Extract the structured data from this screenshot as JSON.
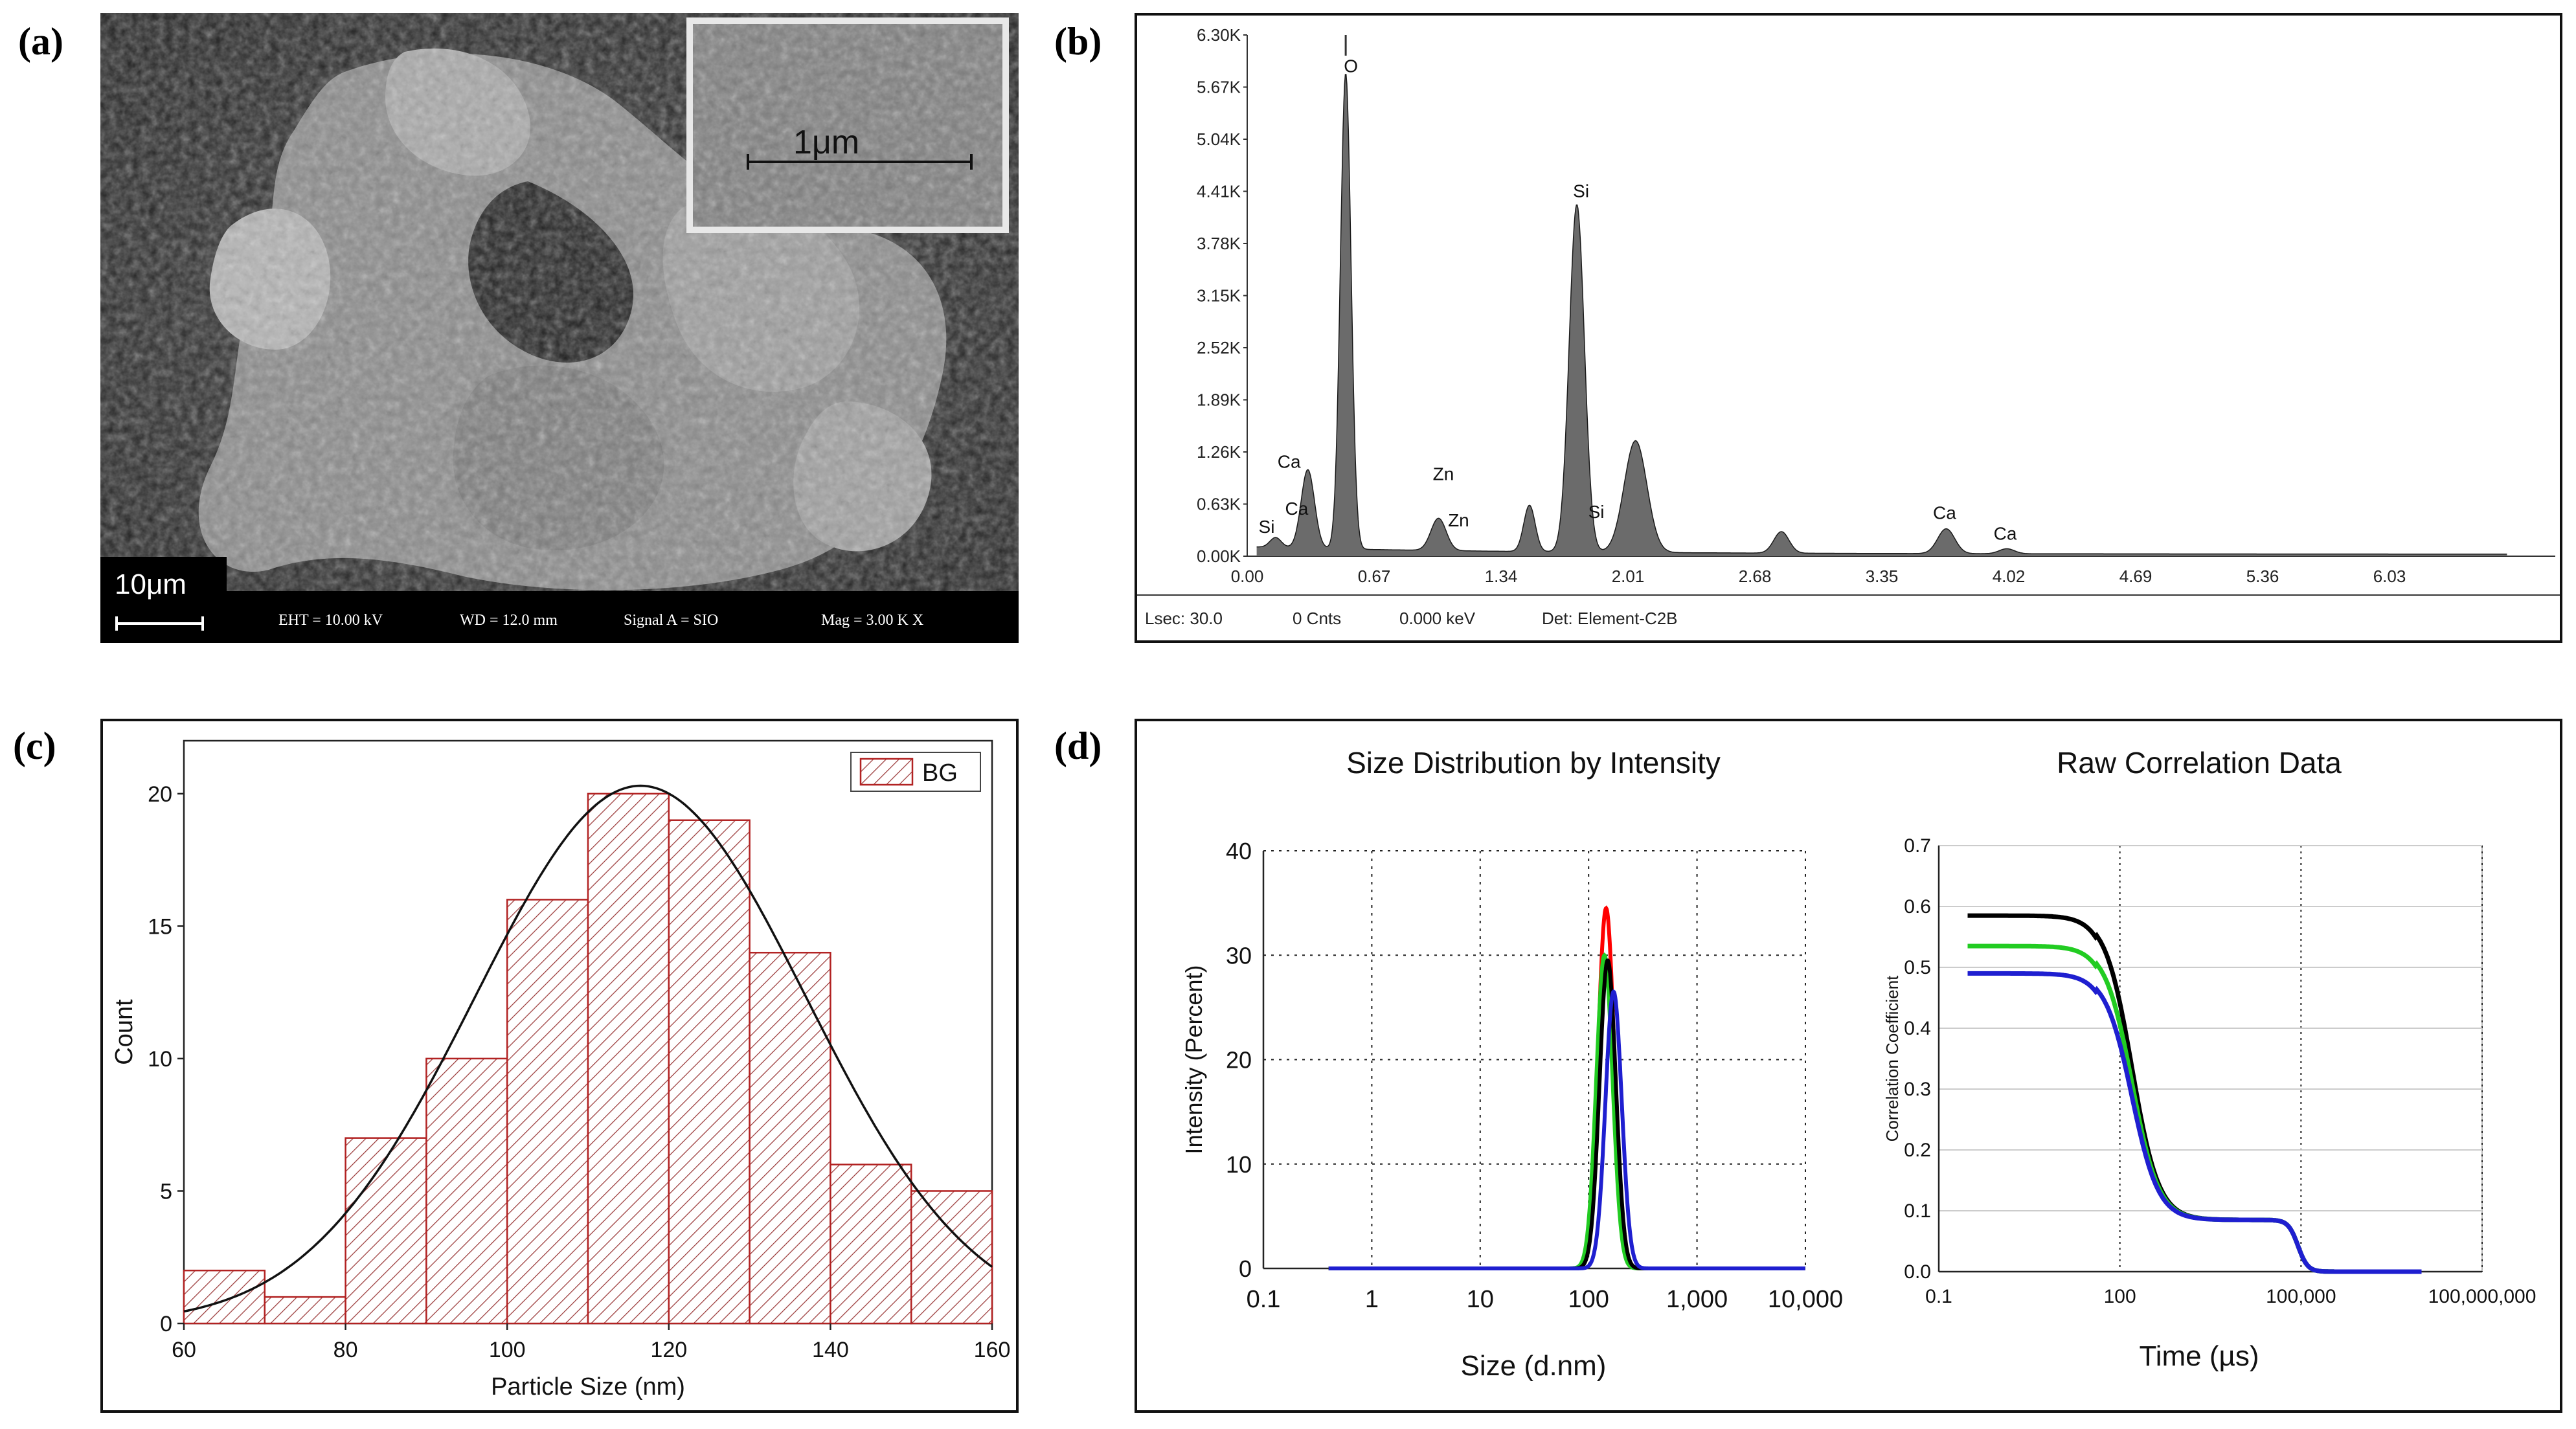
{
  "panel_labels": {
    "a": "(a)",
    "b": "(b)",
    "c": "(c)",
    "d": "(d)"
  },
  "sem": {
    "inset_scale": "1μm",
    "main_scale": "10μm",
    "info": {
      "eht": "EHT = 10.00 kV",
      "wd": "WD = 12.0 mm",
      "signal": "Signal A = SIO",
      "mag": "Mag = 3.00 K X"
    }
  },
  "edx_footer": {
    "lsec": "Lsec: 30.0",
    "cnts": "0 Cnts",
    "kev": "0.000 keV",
    "det": "Det: Element-C2B"
  },
  "dls_titles": {
    "size": "Size Distribution  by Intensity",
    "corr": "Raw Correlation Data"
  },
  "chart_data": [
    {
      "id": "edx",
      "type": "area",
      "title": "",
      "xlabel": "",
      "ylabel": "",
      "xlim": [
        0,
        6.7
      ],
      "ylim": [
        0,
        6300
      ],
      "x_ticks": [
        "0.00",
        "0.67",
        "1.34",
        "2.01",
        "2.68",
        "3.35",
        "4.02",
        "4.69",
        "5.36",
        "6.03"
      ],
      "y_ticks": [
        "0.00K",
        "0.63K",
        "1.26K",
        "1.89K",
        "2.52K",
        "3.15K",
        "3.78K",
        "4.41K",
        "5.04K",
        "5.67K",
        "6.30K"
      ],
      "peaks": [
        {
          "energy": 0.15,
          "counts": 120,
          "width": 0.03
        },
        {
          "energy": 0.32,
          "counts": 950,
          "width": 0.035
        },
        {
          "energy": 0.52,
          "counts": 5750,
          "width": 0.028
        },
        {
          "energy": 1.01,
          "counts": 390,
          "width": 0.04
        },
        {
          "energy": 1.49,
          "counts": 560,
          "width": 0.03
        },
        {
          "energy": 1.74,
          "counts": 4200,
          "width": 0.04
        },
        {
          "energy": 2.05,
          "counts": 1350,
          "width": 0.06
        },
        {
          "energy": 2.82,
          "counts": 260,
          "width": 0.04
        },
        {
          "energy": 3.69,
          "counts": 300,
          "width": 0.045
        },
        {
          "energy": 4.01,
          "counts": 60,
          "width": 0.04
        }
      ],
      "annotations": [
        {
          "label": "Si",
          "energy": 0.06,
          "counts": 280
        },
        {
          "label": "Ca",
          "energy": 0.16,
          "counts": 1070
        },
        {
          "label": "Ca",
          "energy": 0.2,
          "counts": 500
        },
        {
          "label": "O",
          "energy": 0.51,
          "counts": 5850
        },
        {
          "label": "Zn",
          "energy": 0.98,
          "counts": 920
        },
        {
          "label": "Zn",
          "energy": 1.06,
          "counts": 360
        },
        {
          "label": "Si",
          "energy": 1.72,
          "counts": 4340
        },
        {
          "label": "Si",
          "energy": 1.8,
          "counts": 460
        },
        {
          "label": "Ca",
          "energy": 3.62,
          "counts": 450
        },
        {
          "label": "Ca",
          "energy": 3.94,
          "counts": 200
        }
      ]
    },
    {
      "id": "histogram",
      "type": "bar",
      "title": "",
      "xlabel": "Particle Size (nm)",
      "ylabel": "Count",
      "xlim": [
        60,
        160
      ],
      "ylim": [
        0,
        22
      ],
      "x_ticks": [
        "60",
        "80",
        "100",
        "120",
        "140",
        "160"
      ],
      "y_ticks": [
        "0",
        "5",
        "10",
        "15",
        "20"
      ],
      "bin_edges": [
        60,
        70,
        80,
        90,
        100,
        110,
        120,
        130,
        140,
        150,
        160
      ],
      "values": [
        2,
        1,
        7,
        10,
        16,
        20,
        19,
        14,
        6,
        5
      ],
      "legend": "BG",
      "fit": {
        "type": "gaussian",
        "mean": 116.5,
        "sigma": 20.5,
        "peak": 20.3
      }
    },
    {
      "id": "size-distribution",
      "type": "line",
      "title": "Size Distribution  by Intensity",
      "xlabel": "Size (d.nm)",
      "ylabel": "Intensity (Percent)",
      "x_scale": "log",
      "xlim": [
        0.1,
        10000
      ],
      "ylim": [
        0,
        40
      ],
      "x_ticks": [
        "0.1",
        "1",
        "10",
        "100",
        "1,000",
        "10,000"
      ],
      "y_ticks": [
        "0",
        "10",
        "20",
        "30",
        "40"
      ],
      "series": [
        {
          "name": "red",
          "color": "#ff0000",
          "peak_size": 145,
          "peak": 34.5
        },
        {
          "name": "green",
          "color": "#22cc22",
          "peak_size": 140,
          "peak": 30.0
        },
        {
          "name": "black",
          "color": "#000000",
          "peak_size": 150,
          "peak": 29.5
        },
        {
          "name": "blue",
          "color": "#1f1fd0",
          "peak_size": 170,
          "peak": 26.5
        }
      ]
    },
    {
      "id": "correlation",
      "type": "line",
      "title": "Raw Correlation Data",
      "xlabel": "Time (µs)",
      "ylabel": "Correlation Coefficient",
      "x_scale": "log",
      "xlim": [
        0.1,
        100000000
      ],
      "ylim": [
        0,
        0.7
      ],
      "x_ticks": [
        "0.1",
        "100",
        "100,000",
        "100,000,000"
      ],
      "y_ticks": [
        "0.0",
        "0.1",
        "0.2",
        "0.3",
        "0.4",
        "0.5",
        "0.6",
        "0.7"
      ],
      "series": [
        {
          "name": "black",
          "color": "#000000",
          "plateau": 0.585
        },
        {
          "name": "green",
          "color": "#22cc22",
          "plateau": 0.535
        },
        {
          "name": "blue",
          "color": "#1f1fd0",
          "plateau": 0.49
        }
      ]
    }
  ]
}
